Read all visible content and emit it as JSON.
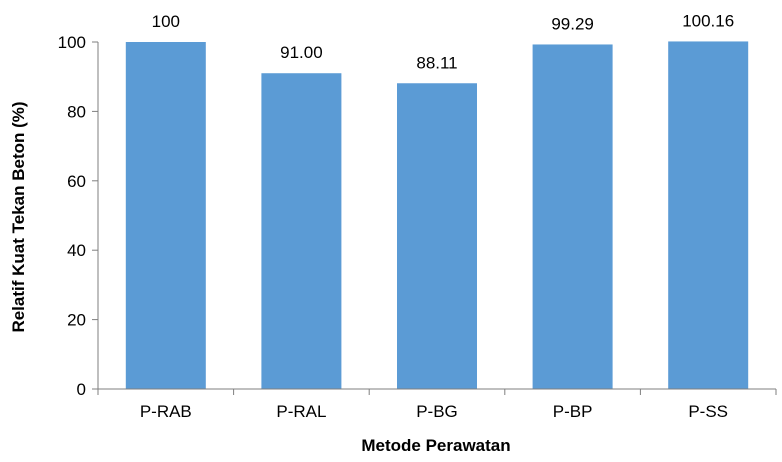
{
  "chart_data": {
    "type": "bar",
    "categories": [
      "P-RAB",
      "P-RAL",
      "P-BG",
      "P-BP",
      "P-SS"
    ],
    "values": [
      100,
      91.0,
      88.11,
      99.29,
      100.16
    ],
    "data_labels": [
      "100",
      "91.00",
      "88.11",
      "99.29",
      "100.16"
    ],
    "xlabel": "Metode Perawatan",
    "ylabel": "Relatif Kuat Tekan Beton (%)",
    "ylim": [
      0,
      100
    ],
    "yticks": [
      0,
      20,
      40,
      60,
      80,
      100
    ],
    "grid": false,
    "bar_color": "#5b9bd5",
    "axis_color": "#7f7f7f"
  }
}
